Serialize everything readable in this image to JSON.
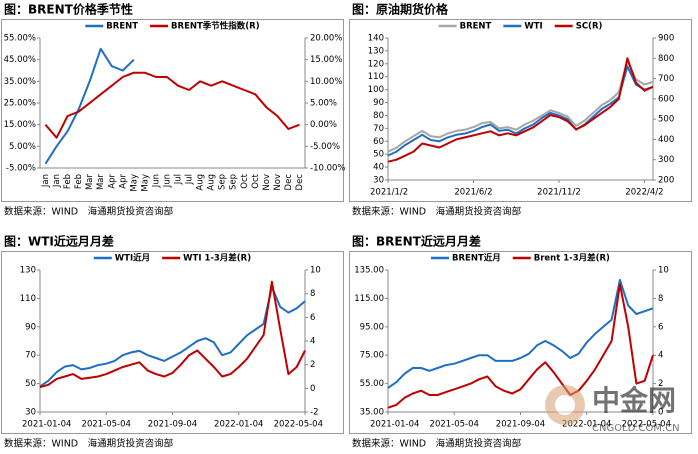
{
  "chart_data": [
    {
      "type": "line",
      "title": "图：BRENT价格季节性",
      "source": "数据来源：WIND　海通期货投资咨询部",
      "label_style": "vertical",
      "categories": [
        "Jan",
        "Jan",
        "Feb",
        "Feb",
        "Mar",
        "Mar",
        "Apr",
        "Apr",
        "May",
        "May",
        "Jun",
        "Jun",
        "Jul",
        "Jul",
        "Aug",
        "Aug",
        "Sep",
        "Sep",
        "Oct",
        "Oct",
        "Nov",
        "Nov",
        "Dec",
        "Dec"
      ],
      "series": [
        {
          "name": "BRENT",
          "color": "#1f6fc5",
          "values": [
            -3,
            5,
            12,
            22,
            35,
            50,
            42,
            40,
            45,
            null,
            null,
            null,
            null,
            null,
            null,
            null,
            null,
            null,
            null,
            null,
            null,
            null,
            null,
            null
          ]
        },
        {
          "name": "BRENT季节性指数(R)",
          "color": "#c00000",
          "axis": "y2",
          "values": [
            0,
            -3,
            2,
            3,
            5,
            7,
            9,
            11,
            12,
            12,
            11,
            11,
            9,
            8,
            10,
            9,
            10,
            9,
            8,
            7,
            4,
            2,
            -1,
            0
          ]
        }
      ],
      "ylim": [
        -5,
        55
      ],
      "yticks": [
        {
          "value": -5,
          "label": "-5.00%"
        },
        {
          "value": 5,
          "label": "5.00%"
        },
        {
          "value": 15,
          "label": "15.00%"
        },
        {
          "value": 25,
          "label": "25.00%"
        },
        {
          "value": 35,
          "label": "35.00%"
        },
        {
          "value": 45,
          "label": "45.00%"
        },
        {
          "value": 55,
          "label": "55.00%"
        }
      ],
      "y2lim": [
        -10,
        20
      ],
      "y2ticks": [
        {
          "value": -10,
          "label": "-10.00%"
        },
        {
          "value": -5,
          "label": "-5.00%"
        },
        {
          "value": 0,
          "label": "0.00%"
        },
        {
          "value": 5,
          "label": "5.00%"
        },
        {
          "value": 10,
          "label": "10.00%"
        },
        {
          "value": 15,
          "label": "15.00%"
        },
        {
          "value": 20,
          "label": "20.00%"
        }
      ]
    },
    {
      "type": "line",
      "title": "图：原油期货价格",
      "source": "数据来源：WIND　海通期货投资咨询部",
      "label_style": "horizontal",
      "categories": [
        "2021/1/2",
        null,
        null,
        null,
        null,
        null,
        null,
        null,
        null,
        null,
        "2021/6/2",
        null,
        null,
        null,
        null,
        null,
        null,
        null,
        null,
        null,
        "2021/11/2",
        null,
        null,
        null,
        null,
        null,
        null,
        null,
        null,
        null,
        "2022/4/2",
        null
      ],
      "series": [
        {
          "name": "BRENT",
          "color": "#a6a6a6",
          "values": [
            52,
            55,
            60,
            64,
            68,
            64,
            63,
            66,
            68,
            69,
            71,
            74,
            75,
            70,
            71,
            69,
            73,
            76,
            80,
            84,
            82,
            79,
            72,
            76,
            82,
            88,
            92,
            98,
            122,
            108,
            104,
            106
          ]
        },
        {
          "name": "WTI",
          "color": "#1f6fc5",
          "values": [
            49,
            52,
            57,
            61,
            65,
            61,
            60,
            63,
            65,
            66,
            68,
            71,
            73,
            68,
            69,
            66,
            70,
            73,
            78,
            82,
            80,
            77,
            69,
            73,
            79,
            85,
            89,
            94,
            118,
            104,
            100,
            102
          ]
        },
        {
          "name": "SC(R)",
          "color": "#c00000",
          "axis": "y2",
          "values": [
            290,
            300,
            320,
            340,
            380,
            370,
            360,
            380,
            400,
            410,
            420,
            430,
            440,
            420,
            430,
            420,
            440,
            460,
            490,
            520,
            510,
            490,
            450,
            470,
            500,
            530,
            560,
            600,
            800,
            680,
            640,
            660
          ]
        }
      ],
      "ylim": [
        30,
        140
      ],
      "yticks": [
        30,
        40,
        50,
        60,
        70,
        80,
        90,
        100,
        110,
        120,
        130,
        140
      ],
      "y2lim": [
        200,
        900
      ],
      "y2ticks": [
        200,
        300,
        400,
        500,
        600,
        700,
        800,
        900
      ]
    },
    {
      "type": "line",
      "title": "图：WTI近远月月差",
      "source": "数据来源：WIND　海通期货投资咨询部",
      "label_style": "horizontal",
      "categories": [
        "2021-01-04",
        null,
        null,
        null,
        null,
        null,
        null,
        null,
        "2021-05-04",
        null,
        null,
        null,
        null,
        null,
        null,
        null,
        "2021-09-04",
        null,
        null,
        null,
        null,
        null,
        null,
        null,
        "2022-01-04",
        null,
        null,
        null,
        null,
        null,
        null,
        null,
        "2022-05-04"
      ],
      "series": [
        {
          "name": "WTI近月",
          "color": "#1f6fc5",
          "values": [
            48,
            52,
            58,
            62,
            63,
            60,
            61,
            63,
            64,
            66,
            70,
            72,
            73,
            70,
            68,
            66,
            69,
            72,
            76,
            80,
            82,
            79,
            70,
            72,
            78,
            84,
            88,
            92,
            118,
            104,
            100,
            103,
            108
          ]
        },
        {
          "name": "WTI 1-3月差(R)",
          "color": "#c00000",
          "axis": "y2",
          "values": [
            0.1,
            0.3,
            0.8,
            1,
            1.2,
            0.8,
            0.9,
            1,
            1.2,
            1.5,
            1.8,
            2,
            2.2,
            1.5,
            1.2,
            1,
            1.3,
            2,
            2.8,
            3.2,
            2.5,
            1.8,
            1,
            1.2,
            1.8,
            2.5,
            3.5,
            4.5,
            9,
            5,
            1.2,
            1.8,
            3.2
          ]
        }
      ],
      "ylim": [
        30,
        130
      ],
      "yticks": [
        30,
        50,
        70,
        90,
        110,
        130
      ],
      "y2lim": [
        -2,
        10
      ],
      "y2ticks": [
        -2,
        0,
        2,
        4,
        6,
        8,
        10
      ]
    },
    {
      "type": "line",
      "title": "图：BRENT近远月月差",
      "source": "数据来源：WIND　海通期货投资咨询部",
      "label_style": "horizontal",
      "categories": [
        "2021-01-04",
        null,
        null,
        null,
        null,
        null,
        null,
        null,
        "2021-05-04",
        null,
        null,
        null,
        null,
        null,
        null,
        null,
        "2021-09-04",
        null,
        null,
        null,
        null,
        null,
        null,
        null,
        "2022-01-04",
        null,
        null,
        null,
        null,
        null,
        null,
        null,
        "2022-05-04"
      ],
      "series": [
        {
          "name": "BRENT近月",
          "color": "#1f6fc5",
          "values": [
            52,
            56,
            62,
            66,
            66,
            64,
            66,
            68,
            69,
            71,
            73,
            75,
            75,
            71,
            71,
            71,
            73,
            76,
            82,
            85,
            82,
            78,
            73,
            76,
            84,
            90,
            95,
            100,
            128,
            110,
            104,
            106,
            108
          ]
        },
        {
          "name": "Brent 1-3月差(R)",
          "color": "#c00000",
          "axis": "y2",
          "values": [
            0.3,
            0.5,
            1,
            1.3,
            1.5,
            1.2,
            1.2,
            1.4,
            1.6,
            1.8,
            2,
            2.3,
            2.5,
            1.8,
            1.5,
            1.3,
            1.6,
            2.3,
            3,
            3.5,
            2.8,
            2,
            1.2,
            1.5,
            2.2,
            3,
            4,
            5,
            9,
            6,
            2,
            2.2,
            4
          ]
        }
      ],
      "ylim": [
        35,
        135
      ],
      "yticks": [
        {
          "value": 35,
          "label": "35.00"
        },
        {
          "value": 55,
          "label": "55.00"
        },
        {
          "value": 75,
          "label": "75.00"
        },
        {
          "value": 95,
          "label": "95.00"
        },
        {
          "value": 115,
          "label": "115.00"
        },
        {
          "value": 135,
          "label": "135.00"
        }
      ],
      "y2lim": [
        0,
        10
      ],
      "y2ticks": [
        0,
        2,
        4,
        6,
        8,
        10
      ]
    }
  ],
  "watermark": {
    "name": "中金网",
    "url": "CNGOLD.COM.CN"
  }
}
